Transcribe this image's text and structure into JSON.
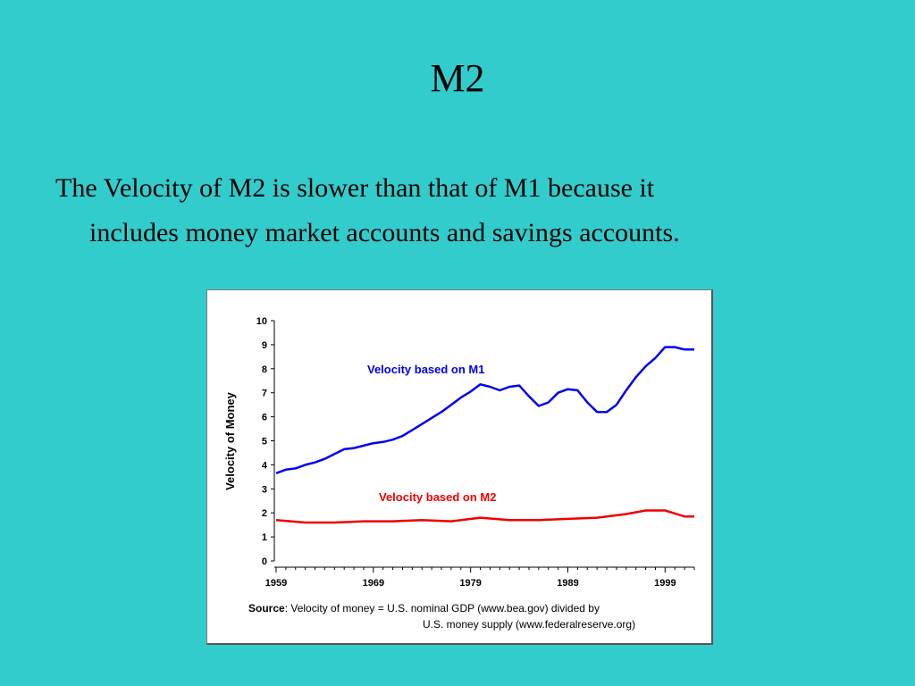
{
  "slide": {
    "title": "M2",
    "body_line1": "The Velocity of M2 is slower than that of M1 because it",
    "body_line2": "includes money market accounts and savings accounts."
  },
  "chart_data": {
    "type": "line",
    "ylabel": "Velocity of Money",
    "xlabel": "",
    "ylim": [
      0,
      10
    ],
    "xlim": [
      1959,
      2002
    ],
    "yticks": [
      "0",
      "1",
      "2",
      "3",
      "4",
      "5",
      "6",
      "7",
      "8",
      "9",
      "10"
    ],
    "xticks": [
      "1959",
      "1969",
      "1979",
      "1989",
      "1999"
    ],
    "grid": false,
    "series": [
      {
        "name": "Velocity based on M1",
        "color": "#0000EE",
        "x": [
          1959,
          1960,
          1961,
          1962,
          1963,
          1964,
          1965,
          1966,
          1967,
          1968,
          1969,
          1970,
          1971,
          1972,
          1973,
          1974,
          1975,
          1976,
          1977,
          1978,
          1979,
          1980,
          1981,
          1982,
          1983,
          1984,
          1985,
          1986,
          1987,
          1988,
          1989,
          1990,
          1991,
          1992,
          1993,
          1994,
          1995,
          1996,
          1997,
          1998,
          1999,
          2000,
          2001,
          2002
        ],
        "values": [
          3.65,
          3.8,
          3.85,
          4.0,
          4.1,
          4.25,
          4.45,
          4.65,
          4.7,
          4.8,
          4.9,
          4.95,
          5.05,
          5.2,
          5.45,
          5.7,
          5.95,
          6.2,
          6.5,
          6.8,
          7.05,
          7.35,
          7.25,
          7.1,
          7.25,
          7.3,
          6.85,
          6.45,
          6.6,
          7.0,
          7.15,
          7.1,
          6.6,
          6.2,
          6.2,
          6.5,
          7.1,
          7.65,
          8.1,
          8.45,
          8.9,
          8.9,
          8.8,
          8.8
        ]
      },
      {
        "name": "Velocity based on M2",
        "color": "#EE0000",
        "x": [
          1959,
          1962,
          1965,
          1968,
          1971,
          1974,
          1977,
          1980,
          1983,
          1986,
          1989,
          1992,
          1995,
          1997,
          1999,
          2001,
          2002
        ],
        "values": [
          1.7,
          1.6,
          1.6,
          1.65,
          1.65,
          1.7,
          1.65,
          1.8,
          1.7,
          1.7,
          1.75,
          1.8,
          1.95,
          2.1,
          2.1,
          1.85,
          1.85
        ]
      }
    ],
    "source_label": "Source",
    "source_line1": ": Velocity of money = U.S. nominal GDP (www.bea.gov) divided by",
    "source_line2": "U.S. money supply (www.federalreserve.org)"
  }
}
